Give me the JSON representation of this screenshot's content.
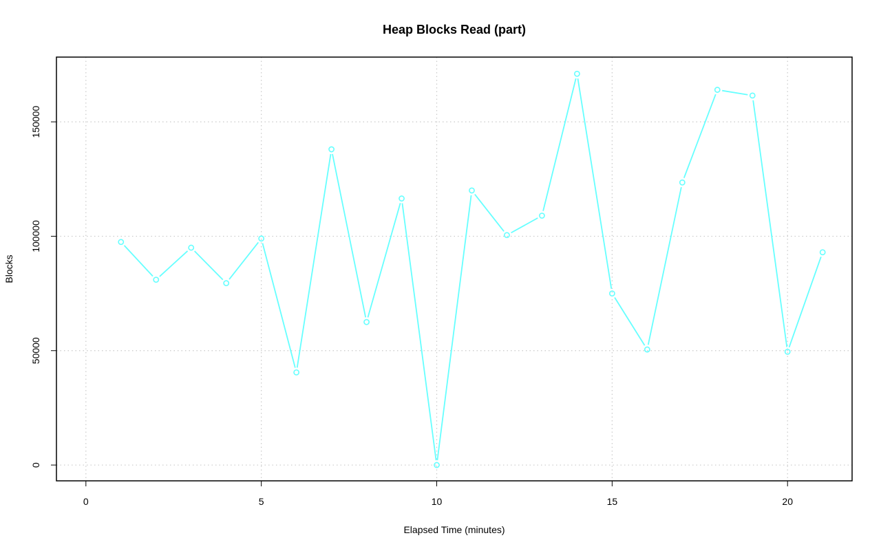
{
  "chart_data": {
    "type": "line",
    "title": "Heap Blocks Read (part)",
    "xlabel": "Elapsed Time (minutes)",
    "ylabel": "Blocks",
    "xlim": [
      -0.84,
      21.84
    ],
    "ylim": [
      -6900,
      178300
    ],
    "x_ticks": [
      0,
      5,
      10,
      15,
      20
    ],
    "x_tick_labels": [
      "0",
      "5",
      "10",
      "15",
      "20"
    ],
    "y_ticks": [
      0,
      50000,
      100000,
      150000
    ],
    "y_tick_labels": [
      "0",
      "50000",
      "100000",
      "150000"
    ],
    "grid": true,
    "legend": "none",
    "series": [
      {
        "color": "#66ffff",
        "marker": "open-circle",
        "x": [
          1,
          2,
          3,
          4,
          5,
          6,
          7,
          8,
          9,
          10,
          11,
          12,
          13,
          14,
          15,
          16,
          17,
          18,
          19,
          20,
          21
        ],
        "values": [
          97500,
          81000,
          95000,
          79500,
          99000,
          40500,
          138000,
          62500,
          116500,
          0,
          120000,
          100500,
          109000,
          171000,
          75000,
          50500,
          123500,
          164000,
          161500,
          49500,
          93000
        ]
      }
    ]
  }
}
